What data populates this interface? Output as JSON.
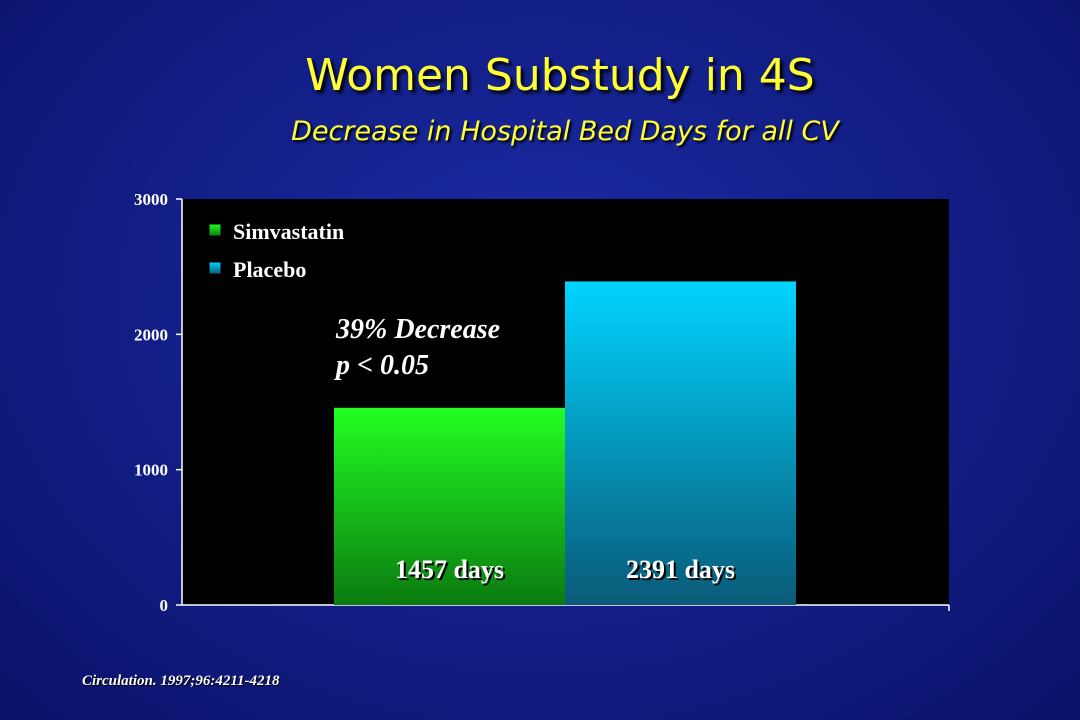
{
  "slide": {
    "title": "Women Substudy in 4S",
    "subtitle": "Decrease in Hospital Bed Days for all CV",
    "source": "Circulation. 1997;96:4211-4218"
  },
  "colors": {
    "background": "#13208a",
    "title": "#ffff33",
    "plot_background": "#000000",
    "simvastatin": "#22ee22",
    "placebo": "#00ccff"
  },
  "chart_data": {
    "type": "bar",
    "categories": [
      ""
    ],
    "series": [
      {
        "name": "Simvastatin",
        "values": [
          1457
        ],
        "label": "1457 days"
      },
      {
        "name": "Placebo",
        "values": [
          2391
        ],
        "label": "2391 days"
      }
    ],
    "ylim": [
      0,
      3000
    ],
    "yticks": [
      "0",
      "1000",
      "2000",
      "3000"
    ],
    "legend_placement": "top-left",
    "grid": false,
    "annotation": {
      "line1": "39% Decrease",
      "line2": "p < 0.05"
    }
  }
}
